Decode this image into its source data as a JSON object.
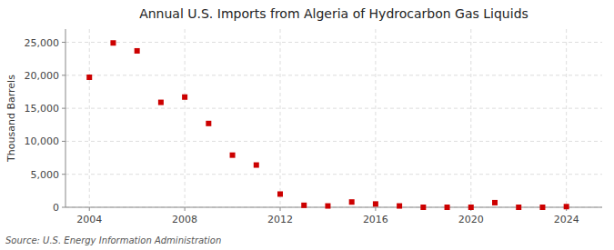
{
  "chart_data": {
    "type": "scatter",
    "title": "Annual U.S. Imports from Algeria of Hydrocarbon Gas Liquids",
    "ylabel": "Thousand Barrels",
    "annotations": [
      "Source: U.S. Energy Information Administration"
    ],
    "x": [
      2004,
      2005,
      2006,
      2007,
      2008,
      2009,
      2010,
      2011,
      2012,
      2013,
      2014,
      2015,
      2016,
      2017,
      2018,
      2019,
      2020,
      2021,
      2022,
      2023,
      2024
    ],
    "values": [
      19700,
      24900,
      23700,
      15900,
      16700,
      12700,
      7900,
      6400,
      2000,
      300,
      200,
      800,
      500,
      200,
      0,
      0,
      0,
      700,
      0,
      0,
      100
    ],
    "color": "#cc0000",
    "marker": "square",
    "xlim": [
      2003,
      2025.5
    ],
    "ylim": [
      0,
      27000
    ],
    "xticks": [
      2004,
      2008,
      2012,
      2016,
      2020,
      2024
    ],
    "yticks": [
      0,
      {
        "value": 5000,
        "label": "5,000"
      },
      {
        "value": 10000,
        "label": "10,000"
      },
      {
        "value": 15000,
        "label": "15,000"
      },
      {
        "value": 20000,
        "label": "20,000"
      },
      {
        "value": 25000,
        "label": "25,000"
      }
    ],
    "grid": true
  }
}
